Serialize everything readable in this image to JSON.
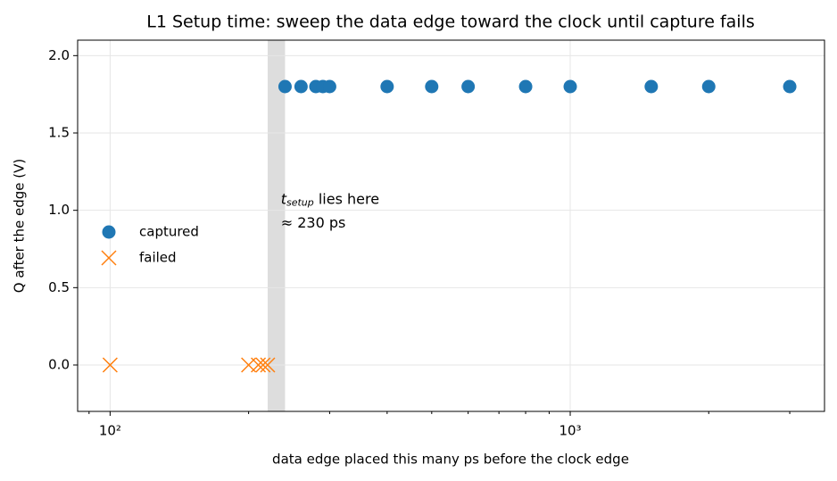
{
  "chart_data": {
    "type": "scatter",
    "title": "L1  Setup time: sweep the data edge toward the clock until capture fails",
    "xlabel": "data edge placed this many ps before the clock edge",
    "ylabel": "Q after the edge (V)",
    "xscale": "log",
    "xlim": [
      85,
      3570
    ],
    "ylim": [
      -0.3,
      2.1
    ],
    "xticks": [
      {
        "value": 100,
        "label": "10²"
      },
      {
        "value": 1000,
        "label": "10³"
      }
    ],
    "xminor_ticks": [
      90,
      200,
      300,
      400,
      500,
      600,
      700,
      800,
      900,
      2000,
      3000
    ],
    "yticks": [
      {
        "value": 0,
        "label": "0.0"
      },
      {
        "value": 0.5,
        "label": "0.5"
      },
      {
        "value": 1,
        "label": "1.0"
      },
      {
        "value": 1.5,
        "label": "1.5"
      },
      {
        "value": 2,
        "label": "2.0"
      }
    ],
    "grid": true,
    "legend": "center left",
    "span": {
      "x": [
        220,
        240
      ],
      "color": "#dddddd"
    },
    "annotation": {
      "x": 235,
      "y": 1.07,
      "symbol": "t",
      "subscript": "setup",
      "text": " lies here",
      "line2": "≈ 230 ps"
    },
    "series": [
      {
        "name": "captured",
        "color": "#1f77b4",
        "marker": "o",
        "x": [
          240,
          260,
          280,
          290,
          300,
          400,
          500,
          600,
          800,
          1000,
          1500,
          2000,
          3000
        ],
        "values": [
          1.8,
          1.8,
          1.8,
          1.8,
          1.8,
          1.8,
          1.8,
          1.8,
          1.8,
          1.8,
          1.8,
          1.8,
          1.8
        ]
      },
      {
        "name": "failed",
        "color": "#ff7f0e",
        "marker": "x",
        "x": [
          100,
          200,
          210,
          215,
          220
        ],
        "values": [
          0,
          0,
          0,
          0,
          0
        ]
      }
    ]
  }
}
